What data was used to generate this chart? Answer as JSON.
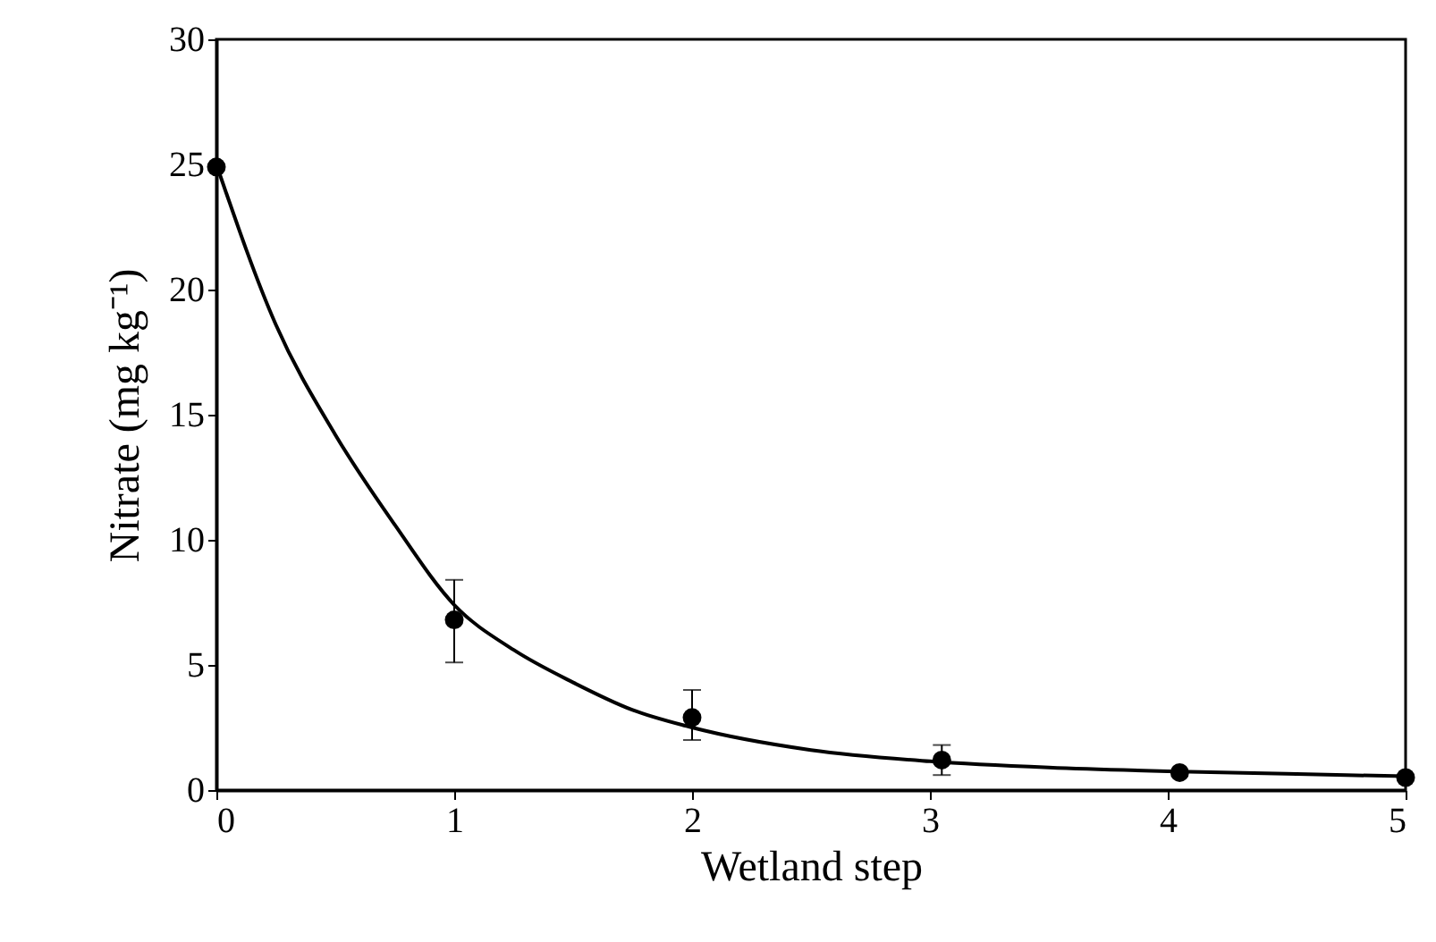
{
  "chart_data": {
    "type": "scatter",
    "xlabel": "Wetland  step",
    "ylabel": "Nitrate (mg kg⁻¹)",
    "xlim": [
      0,
      5
    ],
    "xticks": [
      0,
      1,
      2,
      3,
      4,
      5
    ],
    "ylim": [
      0,
      30
    ],
    "yticks": [
      0,
      5,
      10,
      15,
      20,
      25,
      30
    ],
    "grid": false,
    "marker": "circle",
    "series": [
      {
        "color": "#000000",
        "x": [
          0,
          1.0,
          2.0,
          3.05,
          4.05,
          5.0
        ],
        "values": [
          24.9,
          6.8,
          2.9,
          1.2,
          0.7,
          0.5
        ],
        "errors": [
          null,
          [
            5.1,
            8.4
          ],
          [
            2.0,
            4.0
          ],
          [
            0.6,
            1.8
          ],
          null,
          null
        ]
      },
      {
        "type": "line",
        "marker": "none",
        "color": "#000000",
        "x": [
          0,
          0.25,
          0.5,
          0.75,
          1,
          1.25,
          1.5,
          1.75,
          2,
          2.5,
          3,
          3.5,
          4,
          4.5,
          5
        ],
        "values": [
          25,
          18.6,
          14.2,
          10.6,
          7.4,
          5.6,
          4.3,
          3.2,
          2.5,
          1.6,
          1.15,
          0.9,
          0.75,
          0.65,
          0.55
        ]
      }
    ]
  }
}
